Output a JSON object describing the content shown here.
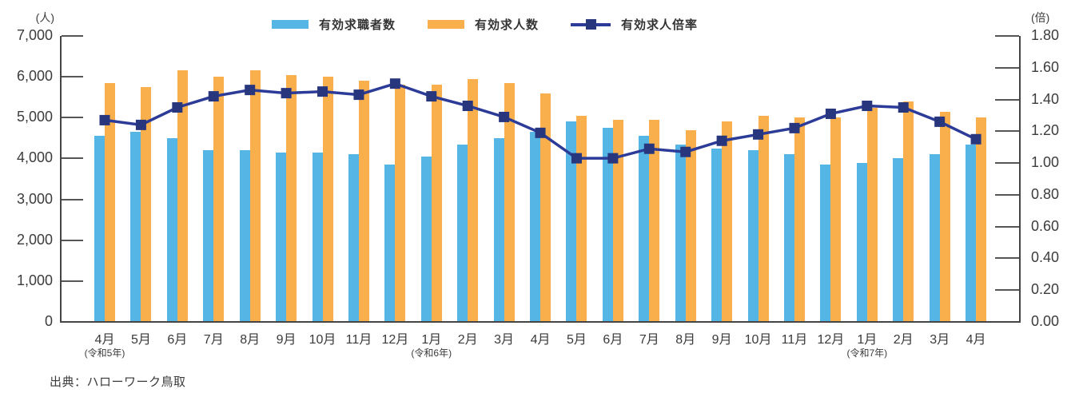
{
  "chart_data": {
    "type": "bar+line",
    "title": "",
    "categories": [
      "4月",
      "5月",
      "6月",
      "7月",
      "8月",
      "9月",
      "10月",
      "11月",
      "12月",
      "1月",
      "2月",
      "3月",
      "4月",
      "5月",
      "6月",
      "7月",
      "8月",
      "9月",
      "10月",
      "11月",
      "12月",
      "1月",
      "2月",
      "3月",
      "4月"
    ],
    "year_annotations": [
      {
        "category_index": 0,
        "label": "(令和5年)"
      },
      {
        "category_index": 9,
        "label": "(令和6年)"
      },
      {
        "category_index": 21,
        "label": "(令和7年)"
      }
    ],
    "series": [
      {
        "name": "有効求職者数",
        "type": "bar",
        "axis": "left",
        "color": "#55B5E5",
        "values": [
          4550,
          4650,
          4500,
          4200,
          4200,
          4150,
          4150,
          4100,
          3850,
          4050,
          4350,
          4500,
          4650,
          4900,
          4750,
          4550,
          4350,
          4250,
          4200,
          4100,
          3850,
          3900,
          4000,
          4100,
          4350
        ]
      },
      {
        "name": "有効求人数",
        "type": "bar",
        "axis": "left",
        "color": "#F9AF4B",
        "values": [
          5850,
          5750,
          6150,
          6000,
          6150,
          6050,
          6000,
          5900,
          5800,
          5800,
          5950,
          5850,
          5600,
          5050,
          4950,
          4950,
          4700,
          4900,
          5050,
          5000,
          5000,
          5250,
          5400,
          5150,
          5000
        ]
      },
      {
        "name": "有効求人倍率",
        "type": "line",
        "axis": "right",
        "color": "#2B3B97",
        "marker_color": "#28367E",
        "values": [
          1.27,
          1.24,
          1.35,
          1.42,
          1.46,
          1.44,
          1.45,
          1.43,
          1.5,
          1.42,
          1.36,
          1.29,
          1.19,
          1.03,
          1.03,
          1.09,
          1.07,
          1.14,
          1.18,
          1.22,
          1.31,
          1.36,
          1.35,
          1.26,
          1.15
        ]
      }
    ],
    "left_axis": {
      "unit": "(人)",
      "min": 0,
      "max": 7000,
      "step": 1000,
      "tick_labels": [
        "7,000",
        "6,000",
        "5,000",
        "4,000",
        "3,000",
        "2,000",
        "1,000",
        "0"
      ]
    },
    "right_axis": {
      "unit": "(倍)",
      "min": 0,
      "max": 1.8,
      "step": 0.2,
      "tick_labels": [
        "1.80",
        "1.60",
        "1.40",
        "1.20",
        "1.00",
        "0.80",
        "0.60",
        "0.40",
        "0.20",
        "0.00"
      ]
    },
    "legend_position": "top-center",
    "grid": "off"
  },
  "source_note": "出典：ハローワーク鳥取"
}
